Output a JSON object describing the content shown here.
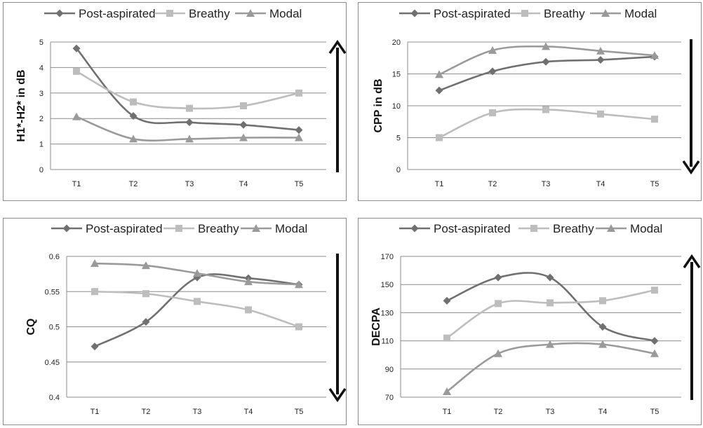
{
  "legend": [
    "Post-aspirated",
    "Breathy",
    "Modal"
  ],
  "colors": {
    "post_aspirated": "#707070",
    "breathy": "#bdbdbd",
    "modal": "#9a9a9a",
    "gridline": "#8c8c8c",
    "arrow": "#111111"
  },
  "chart_data": [
    {
      "type": "line",
      "categories": [
        "T1",
        "T2",
        "T3",
        "T4",
        "T5"
      ],
      "ylabel": "H1*-H2* in dB",
      "ylim": [
        0,
        5
      ],
      "yticks": [
        0,
        1,
        2,
        3,
        4,
        5
      ],
      "grid": true,
      "arrow": "up",
      "series": [
        {
          "name": "Post-aspirated",
          "marker": "diamond",
          "values": [
            4.75,
            2.1,
            1.85,
            1.75,
            1.55
          ]
        },
        {
          "name": "Breathy",
          "marker": "square",
          "values": [
            3.85,
            2.65,
            2.4,
            2.5,
            3.0
          ]
        },
        {
          "name": "Modal",
          "marker": "triangle",
          "values": [
            2.07,
            1.2,
            1.2,
            1.25,
            1.25
          ]
        }
      ]
    },
    {
      "type": "line",
      "categories": [
        "T1",
        "T2",
        "T3",
        "T4",
        "T5"
      ],
      "ylabel": "CPP in dB",
      "ylim": [
        0,
        20
      ],
      "yticks": [
        0,
        5,
        10,
        15,
        20
      ],
      "grid": true,
      "arrow": "down",
      "series": [
        {
          "name": "Post-aspirated",
          "marker": "diamond",
          "values": [
            12.4,
            15.4,
            16.9,
            17.2,
            17.7
          ]
        },
        {
          "name": "Breathy",
          "marker": "square",
          "values": [
            5.0,
            8.9,
            9.4,
            8.7,
            7.9
          ]
        },
        {
          "name": "Modal",
          "marker": "triangle",
          "values": [
            14.9,
            18.7,
            19.3,
            18.6,
            17.9
          ]
        }
      ]
    },
    {
      "type": "line",
      "categories": [
        "T1",
        "T2",
        "T3",
        "T4",
        "T5"
      ],
      "ylabel": "CQ",
      "ylim": [
        0.4,
        0.6
      ],
      "yticks": [
        0.4,
        0.45,
        0.5,
        0.55,
        0.6
      ],
      "grid": true,
      "arrow": "down",
      "series": [
        {
          "name": "Post-aspirated",
          "marker": "diamond",
          "values": [
            0.472,
            0.507,
            0.57,
            0.569,
            0.56
          ]
        },
        {
          "name": "Breathy",
          "marker": "square",
          "values": [
            0.55,
            0.547,
            0.536,
            0.524,
            0.5
          ]
        },
        {
          "name": "Modal",
          "marker": "triangle",
          "values": [
            0.59,
            0.587,
            0.576,
            0.564,
            0.56
          ]
        }
      ]
    },
    {
      "type": "line",
      "categories": [
        "T1",
        "T2",
        "T3",
        "T4",
        "T5"
      ],
      "ylabel": "DECPA",
      "ylim": [
        70,
        170
      ],
      "yticks": [
        70,
        90,
        110,
        130,
        150,
        170
      ],
      "grid": true,
      "arrow": "up",
      "series": [
        {
          "name": "Post-aspirated",
          "marker": "diamond",
          "values": [
            138.5,
            155,
            155,
            120,
            110
          ]
        },
        {
          "name": "Breathy",
          "marker": "square",
          "values": [
            112,
            136.5,
            137,
            138.5,
            146
          ]
        },
        {
          "name": "Modal",
          "marker": "triangle",
          "values": [
            74,
            101,
            107.5,
            107.5,
            101
          ]
        }
      ]
    }
  ]
}
